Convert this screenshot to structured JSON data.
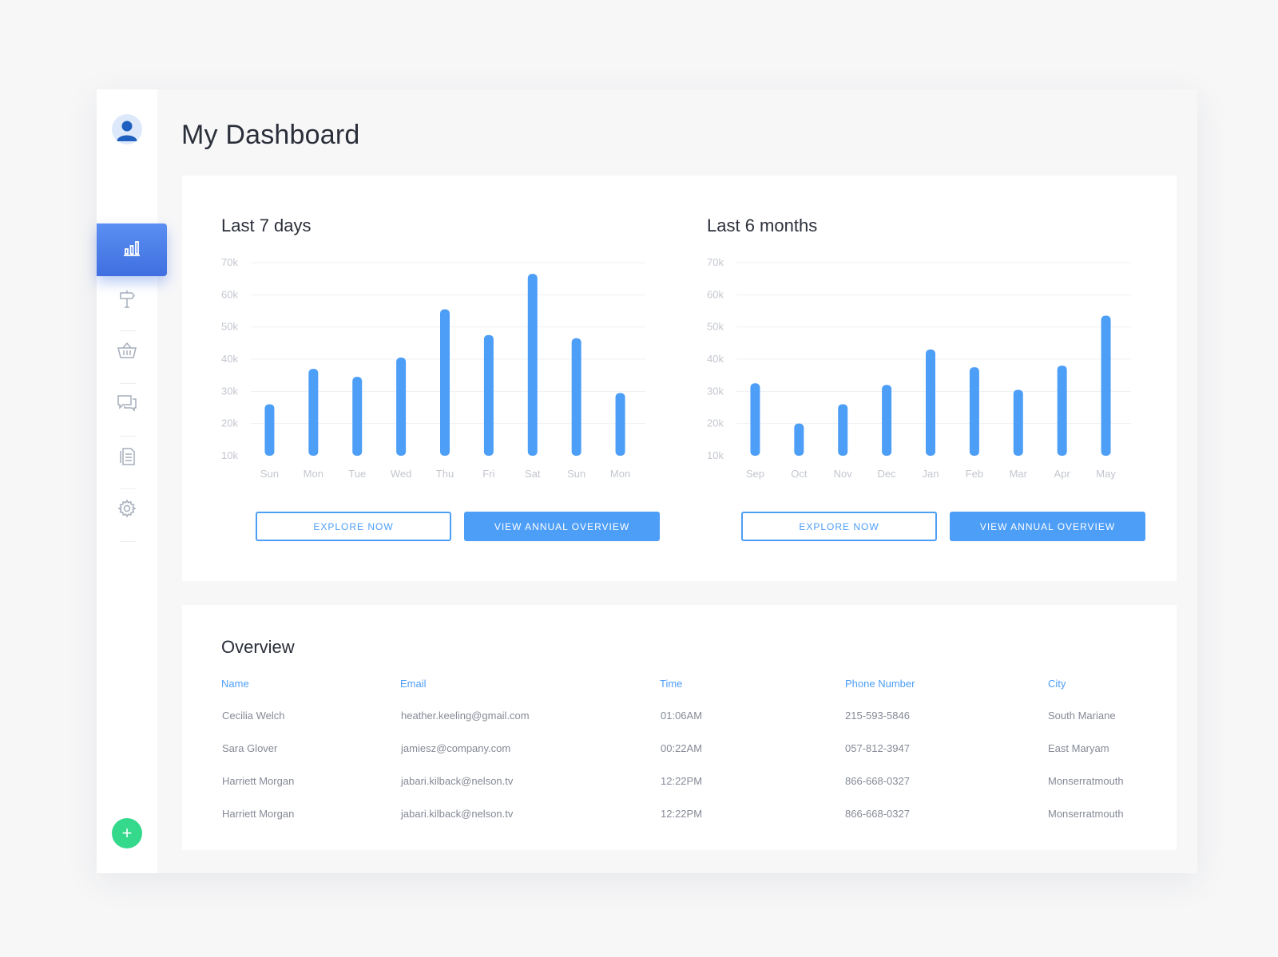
{
  "page": {
    "title": "My Dashboard"
  },
  "sidebar": {
    "avatar_icon": "user-avatar-icon",
    "items": [
      {
        "icon": "bar-chart-icon",
        "active": true
      },
      {
        "icon": "signpost-icon",
        "active": false
      },
      {
        "icon": "basket-icon",
        "active": false
      },
      {
        "icon": "chat-icon",
        "active": false
      },
      {
        "icon": "documents-icon",
        "active": false
      },
      {
        "icon": "settings-gear-icon",
        "active": false
      }
    ],
    "fab_label": "+"
  },
  "colors": {
    "accent": "#4d9ef7",
    "active_nav": "#4a7ee8",
    "fab": "#34d98b",
    "bar": "#4d9ef7"
  },
  "charts": {
    "weekly": {
      "title": "Last 7 days",
      "explore_label": "EXPLORE NOW",
      "annual_label": "VIEW ANNUAL OVERVIEW"
    },
    "monthly": {
      "title": "Last 6 months",
      "explore_label": "EXPLORE NOW",
      "annual_label": "VIEW ANNUAL OVERVIEW"
    }
  },
  "chart_data": [
    {
      "type": "bar",
      "title": "Last 7 days",
      "categories": [
        "Sun",
        "Mon",
        "Tue",
        "Wed",
        "Thu",
        "Fri",
        "Sat",
        "Sun",
        "Mon"
      ],
      "values": [
        26,
        37,
        34.5,
        40.5,
        55.5,
        47.5,
        66.5,
        46.5,
        29.5
      ],
      "unit": "k",
      "ylim": [
        10,
        70
      ],
      "yticks": [
        "10k",
        "20k",
        "30k",
        "40k",
        "50k",
        "60k",
        "70k"
      ],
      "grid": true
    },
    {
      "type": "bar",
      "title": "Last 6 months",
      "categories": [
        "Sep",
        "Oct",
        "Nov",
        "Dec",
        "Jan",
        "Feb",
        "Mar",
        "Apr",
        "May"
      ],
      "values": [
        32.5,
        20,
        26,
        32,
        43,
        37.5,
        30.5,
        38,
        53.5
      ],
      "unit": "k",
      "ylim": [
        10,
        70
      ],
      "yticks": [
        "10k",
        "20k",
        "30k",
        "40k",
        "50k",
        "60k",
        "70k"
      ],
      "grid": true
    }
  ],
  "overview": {
    "title": "Overview",
    "columns": [
      "Name",
      "Email",
      "Time",
      "Phone Number",
      "City"
    ],
    "rows": [
      [
        "Cecilia Welch",
        "heather.keeling@gmail.com",
        "01:06AM",
        "215-593-5846",
        "South Mariane"
      ],
      [
        "Sara Glover",
        "jamiesz@company.com",
        "00:22AM",
        "057-812-3947",
        "East Maryam"
      ],
      [
        "Harriett Morgan",
        "jabari.kilback@nelson.tv",
        "12:22PM",
        "866-668-0327",
        "Monserratmouth"
      ],
      [
        "Harriett Morgan",
        "jabari.kilback@nelson.tv",
        "12:22PM",
        "866-668-0327",
        "Monserratmouth"
      ]
    ]
  }
}
